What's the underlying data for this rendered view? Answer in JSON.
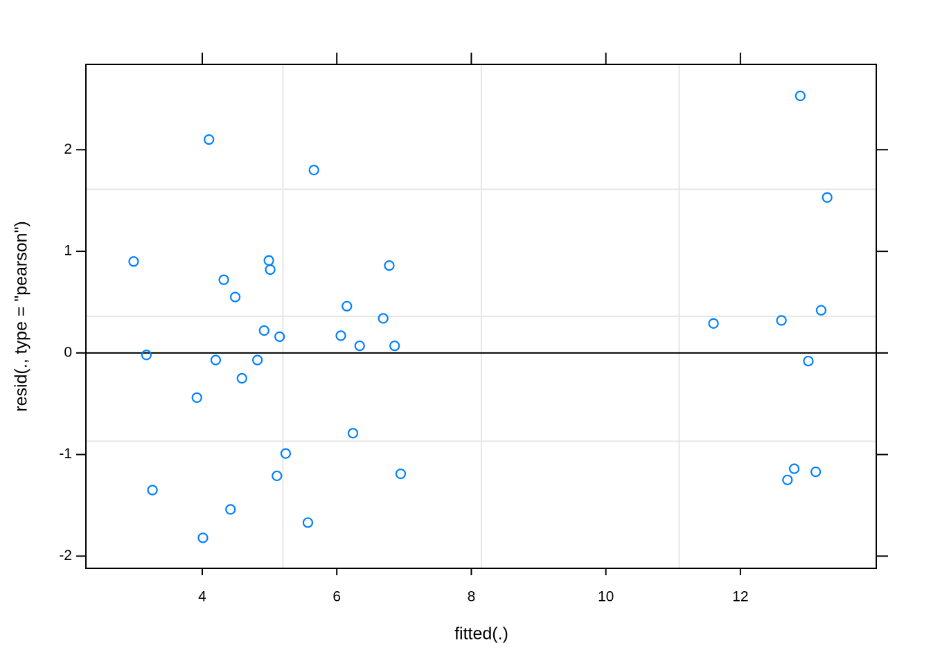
{
  "chart_data": {
    "type": "scatter",
    "xlabel": "fitted(.)",
    "ylabel": "resid(., type = \"pearson\")",
    "x": [
      2.98,
      3.17,
      3.26,
      3.92,
      4.01,
      4.1,
      4.2,
      4.32,
      4.42,
      4.49,
      4.59,
      4.82,
      4.92,
      4.99,
      5.01,
      5.11,
      5.15,
      5.24,
      5.57,
      5.66,
      6.06,
      6.15,
      6.24,
      6.34,
      6.69,
      6.78,
      6.86,
      6.95,
      11.6,
      12.61,
      12.7,
      12.8,
      12.89,
      13.01,
      13.12,
      13.2,
      13.29
    ],
    "values": [
      0.9,
      -0.02,
      -1.35,
      -0.44,
      -1.82,
      2.1,
      -0.07,
      0.72,
      -1.54,
      0.55,
      -0.25,
      -0.07,
      0.22,
      0.91,
      0.82,
      -1.21,
      0.16,
      -0.99,
      -1.67,
      1.8,
      0.17,
      0.46,
      -0.79,
      0.07,
      0.34,
      0.86,
      0.07,
      -1.19,
      0.29,
      0.32,
      -1.25,
      -1.14,
      2.53,
      -0.08,
      -1.17,
      0.42,
      1.53
    ],
    "color": "#0080ff",
    "xlim": [
      2.27,
      14.02
    ],
    "ylim": [
      -2.12,
      2.84
    ],
    "xticks": [
      4,
      6,
      8,
      10,
      12
    ],
    "yticks": [
      -2,
      -1,
      0,
      1,
      2
    ],
    "xgrid": [
      5.2,
      8.15,
      11.09
    ],
    "ygrid": [
      -0.87,
      0.36,
      1.61
    ],
    "hline": 0
  }
}
